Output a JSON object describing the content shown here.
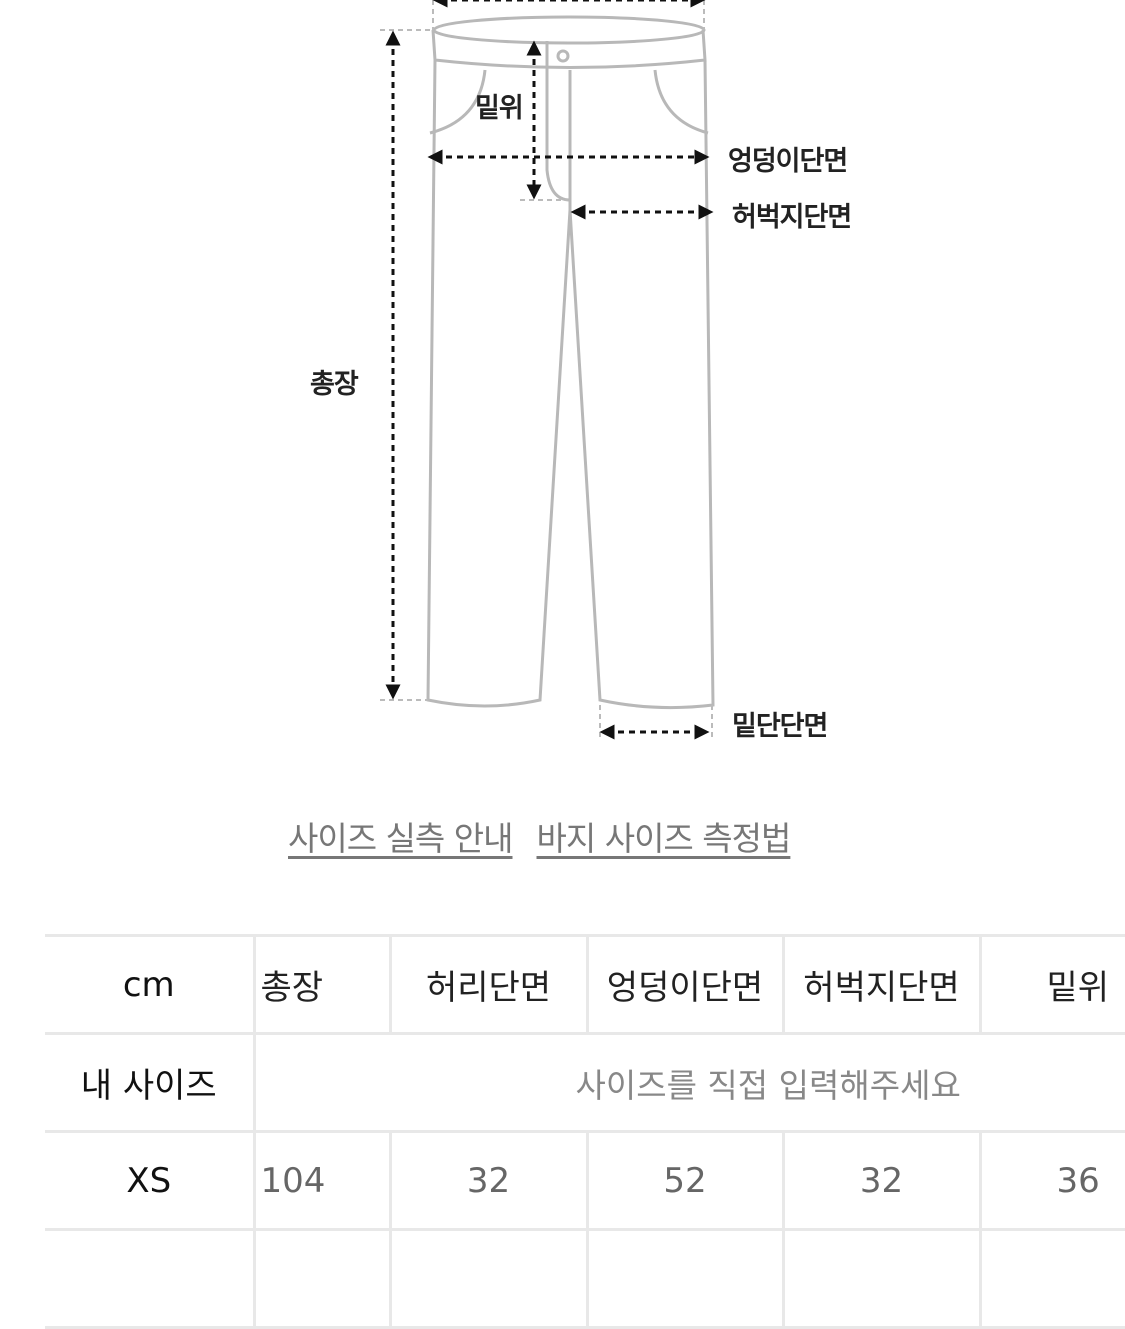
{
  "diagram": {
    "labels": {
      "rise": "밑위",
      "hip": "엉덩이단면",
      "thigh": "허벅지단면",
      "length": "총장",
      "hem": "밑단단면"
    }
  },
  "links": [
    {
      "label": "사이즈 실측 안내"
    },
    {
      "label": "바지 사이즈 측정법"
    }
  ],
  "table": {
    "headers": [
      "cm",
      "총장",
      "허리단면",
      "엉덩이단면",
      "허벅지단면",
      "밑위"
    ],
    "my_size": {
      "label": "내 사이즈",
      "placeholder": "사이즈를 직접 입력해주세요"
    },
    "rows": [
      {
        "size": "XS",
        "values": [
          "104",
          "32",
          "52",
          "32",
          "36"
        ]
      }
    ]
  }
}
